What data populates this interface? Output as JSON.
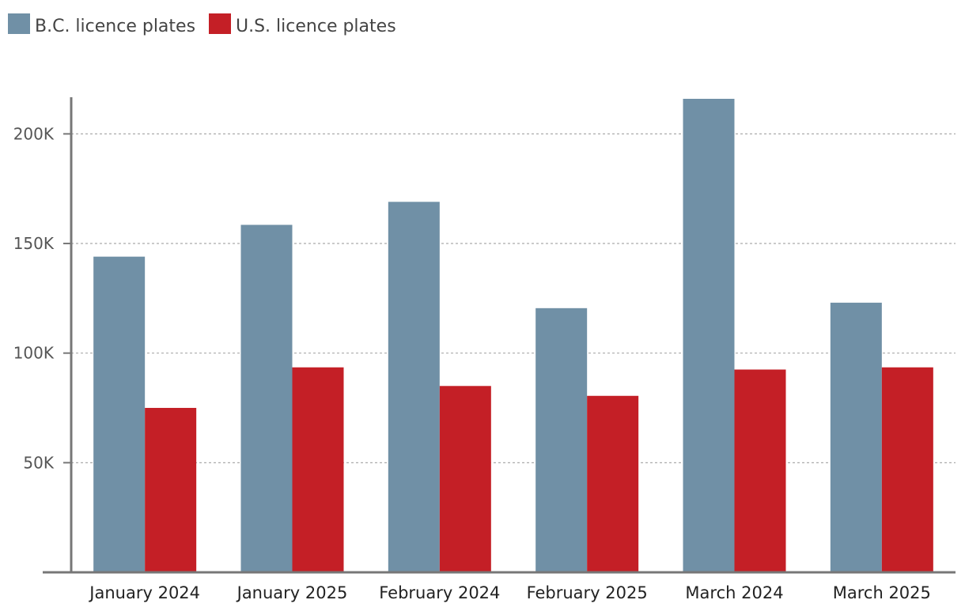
{
  "chart_data": {
    "type": "bar",
    "categories": [
      "January 2024",
      "January 2025",
      "February 2024",
      "February 2025",
      "March 2024",
      "March 2025"
    ],
    "series": [
      {
        "name": "B.C. licence plates",
        "color": "#7090a6",
        "values": [
          144000,
          158500,
          169000,
          120500,
          216000,
          123000
        ]
      },
      {
        "name": "U.S. licence plates",
        "color": "#c41f26",
        "values": [
          75000,
          93500,
          85000,
          80500,
          92500,
          93500
        ]
      }
    ],
    "ylim": [
      0,
      216000
    ],
    "yticks": [
      50000,
      100000,
      150000,
      200000
    ],
    "ytick_labels": [
      "50K",
      "100K",
      "150K",
      "200K"
    ],
    "grid": true,
    "legend": "top-left",
    "title": "",
    "xlabel": "",
    "ylabel": ""
  }
}
